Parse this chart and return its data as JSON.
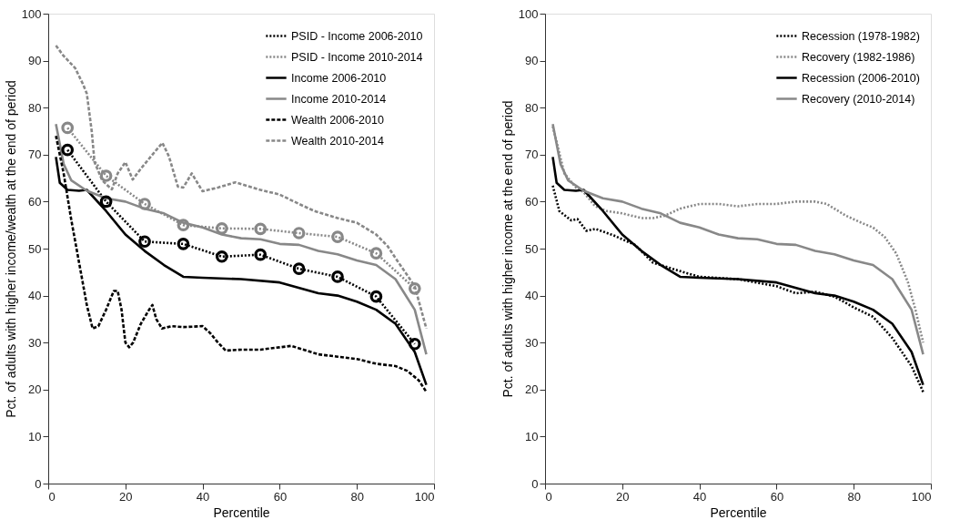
{
  "chart_data": [
    {
      "type": "line",
      "xlabel": "Percentile",
      "ylabel": "Pct. of adults with higher income/wealth at the end of period",
      "xlim": [
        0,
        100
      ],
      "xticks": [
        0,
        20,
        40,
        60,
        80,
        100
      ],
      "ylim": [
        0,
        100
      ],
      "yticks": [
        0,
        10,
        20,
        30,
        40,
        50,
        60,
        70,
        80,
        90,
        100
      ],
      "grid": false,
      "legend": "top right",
      "series": [
        {
          "name": "PSID - Income 2006-2010",
          "color": "#000000",
          "line_style": "dotted",
          "marker": "circle",
          "x": [
            5,
            15,
            25,
            35,
            45,
            55,
            65,
            75,
            85,
            95
          ],
          "values": [
            71,
            60,
            51.5,
            51,
            48.3,
            48.7,
            45.7,
            44,
            39.8,
            29.7
          ]
        },
        {
          "name": "PSID - Income 2010-2014",
          "color": "#888888",
          "line_style": "dotted",
          "marker": "circle",
          "x": [
            5,
            15,
            25,
            35,
            45,
            55,
            65,
            75,
            85,
            95
          ],
          "values": [
            75.7,
            65.5,
            59.5,
            55,
            54.3,
            54.2,
            53.3,
            52.5,
            49,
            41.5
          ]
        },
        {
          "name": "Income 2006-2010",
          "color": "#000000",
          "line_style": "solid",
          "marker": "none",
          "x": [
            2,
            3,
            5,
            8,
            10,
            15,
            20,
            25,
            30,
            35,
            40,
            50,
            60,
            70,
            75,
            80,
            85,
            90,
            95,
            98
          ],
          "values": [
            69.5,
            64,
            62.5,
            62.3,
            62.5,
            58,
            53,
            49.5,
            46.5,
            44,
            43.8,
            43.5,
            42.8,
            40.5,
            40,
            38.7,
            37,
            34,
            28,
            21
          ]
        },
        {
          "name": "Income 2010-2014",
          "color": "#888888",
          "line_style": "solid",
          "marker": "none",
          "x": [
            2,
            4,
            6,
            10,
            15,
            20,
            25,
            30,
            35,
            40,
            45,
            50,
            55,
            60,
            65,
            70,
            75,
            80,
            85,
            90,
            95,
            98
          ],
          "values": [
            76.5,
            68,
            64.5,
            62.3,
            60.7,
            60,
            58.5,
            57.5,
            55.5,
            54.5,
            53,
            52.2,
            52,
            51,
            50.8,
            49.5,
            48.8,
            47.5,
            46.5,
            43.5,
            37,
            27.5
          ]
        },
        {
          "name": "Wealth 2006-2010",
          "color": "#000000",
          "line_style": "dashed",
          "marker": "none",
          "x": [
            2,
            4,
            6,
            8,
            10,
            11.5,
            13,
            15,
            17,
            18,
            19,
            20,
            21,
            22,
            24,
            26,
            27,
            28,
            29.5,
            32,
            35,
            40,
            42,
            44,
            46,
            50,
            55,
            60,
            63,
            65,
            70,
            75,
            80,
            85,
            90,
            93,
            96,
            98
          ],
          "values": [
            74,
            66,
            56,
            47,
            38,
            33,
            33.5,
            37,
            41,
            41,
            37,
            30,
            29,
            30,
            34,
            36.8,
            38,
            35,
            33,
            33.5,
            33.3,
            33.5,
            32,
            30,
            28.3,
            28.5,
            28.5,
            29,
            29.3,
            28.8,
            27.5,
            27,
            26.5,
            25.5,
            25,
            24,
            22,
            19.5
          ]
        },
        {
          "name": "Wealth 2010-2014",
          "color": "#888888",
          "line_style": "dashed",
          "marker": "none",
          "x": [
            2,
            4,
            7,
            9,
            10,
            11.3,
            12,
            14,
            16.5,
            18,
            20,
            21.9,
            24,
            27,
            29.6,
            31.3,
            33.6,
            35,
            37.2,
            40,
            44,
            48.5,
            55,
            60,
            65,
            69,
            75,
            80,
            85,
            88,
            90,
            95,
            98
          ],
          "values": [
            93.2,
            91,
            88.4,
            85,
            83,
            74.8,
            68.4,
            64.5,
            62.6,
            66,
            68.4,
            64.7,
            67,
            70,
            72.5,
            69.6,
            63.2,
            63,
            66,
            62.2,
            63,
            64.1,
            62.5,
            61.5,
            59.5,
            58,
            56.5,
            55.5,
            53,
            50.5,
            48,
            42,
            33
          ]
        }
      ]
    },
    {
      "type": "line",
      "xlabel": "Percentile",
      "ylabel": "Pct. of adults with higher income at the end of period",
      "xlim": [
        0,
        100
      ],
      "xticks": [
        0,
        20,
        40,
        60,
        80,
        100
      ],
      "ylim": [
        0,
        100
      ],
      "yticks": [
        0,
        10,
        20,
        30,
        40,
        50,
        60,
        70,
        80,
        90,
        100
      ],
      "grid": false,
      "legend": "top right",
      "series": [
        {
          "name": "Recession (1978-1982)",
          "color": "#000000",
          "line_style": "dotted",
          "marker": "none",
          "x": [
            2,
            3.7,
            6.8,
            8.4,
            10.7,
            13.1,
            17.8,
            23.3,
            28,
            35.8,
            40,
            50,
            60,
            65,
            70,
            75,
            80,
            85,
            90,
            95,
            98
          ],
          "values": [
            63.4,
            58,
            56,
            56.3,
            53.8,
            54.2,
            52.8,
            50.8,
            47,
            45,
            44,
            43.5,
            42,
            40.5,
            40.8,
            39.8,
            37.5,
            35.5,
            31,
            25,
            19.5
          ]
        },
        {
          "name": "Recovery (1982-1986)",
          "color": "#888888",
          "line_style": "dotted",
          "marker": "none",
          "x": [
            2,
            5,
            8,
            10,
            13,
            16,
            20,
            25,
            28,
            31,
            35,
            40,
            45,
            50,
            55,
            60,
            65,
            70,
            73,
            78,
            82,
            85,
            88,
            91,
            94,
            96,
            98
          ],
          "values": [
            76,
            66,
            63,
            62,
            59,
            58,
            57.5,
            56.5,
            56.5,
            57,
            58.5,
            59.5,
            59.5,
            59,
            59.5,
            59.5,
            60,
            60,
            59.5,
            57,
            55.5,
            54.5,
            52.5,
            49,
            43,
            37,
            30
          ]
        },
        {
          "name": "Recession (2006-2010)",
          "color": "#000000",
          "line_style": "solid",
          "marker": "none",
          "x": [
            2,
            3,
            5,
            8,
            10,
            15,
            20,
            25,
            30,
            35,
            40,
            50,
            60,
            70,
            75,
            80,
            85,
            90,
            95,
            98
          ],
          "values": [
            69.5,
            64,
            62.5,
            62.3,
            62.5,
            58,
            53,
            49.5,
            46.5,
            44,
            43.8,
            43.5,
            42.8,
            40.5,
            40,
            38.7,
            37,
            34,
            28,
            21
          ]
        },
        {
          "name": "Recovery (2010-2014)",
          "color": "#888888",
          "line_style": "solid",
          "marker": "none",
          "x": [
            2,
            4,
            6,
            10,
            15,
            20,
            25,
            30,
            35,
            40,
            45,
            50,
            55,
            60,
            65,
            70,
            75,
            80,
            85,
            90,
            95,
            98
          ],
          "values": [
            76.5,
            68,
            64.5,
            62.3,
            60.7,
            60,
            58.5,
            57.5,
            55.5,
            54.5,
            53,
            52.2,
            52,
            51,
            50.8,
            49.5,
            48.8,
            47.5,
            46.5,
            43.5,
            37,
            27.5
          ]
        }
      ]
    }
  ]
}
